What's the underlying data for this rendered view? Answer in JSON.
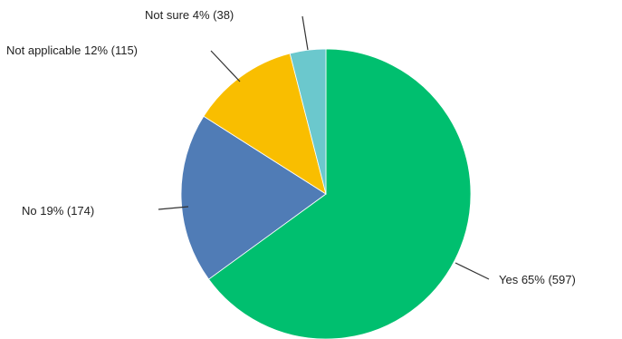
{
  "chart_data": {
    "type": "pie",
    "title": "",
    "start_angle_deg": 0,
    "direction": "clockwise",
    "slices": [
      {
        "label": "Yes 65% (597)",
        "category": "Yes",
        "percent": 65,
        "count": 597,
        "color": "#00bf6f"
      },
      {
        "label": "No 19% (174)",
        "category": "No",
        "percent": 19,
        "count": 174,
        "color": "#507cb6"
      },
      {
        "label": "Not applicable 12% (115)",
        "category": "Not applicable",
        "percent": 12,
        "count": 115,
        "color": "#f9be00"
      },
      {
        "label": "Not sure 4% (38)",
        "category": "Not sure",
        "percent": 4,
        "count": 38,
        "color": "#6bc8cd"
      }
    ]
  }
}
